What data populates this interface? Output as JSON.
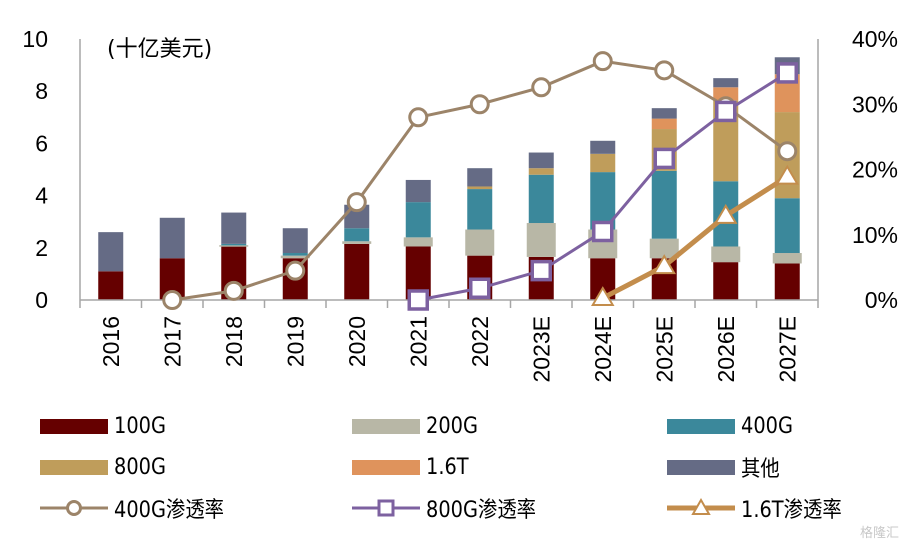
{
  "chart_data": {
    "type": "bar",
    "subtype": "stacked-bar-with-lines",
    "unit_label": "(十亿美元)",
    "categories": [
      "2016",
      "2017",
      "2018",
      "2019",
      "2020",
      "2021",
      "2022",
      "2023E",
      "2024E",
      "2025E",
      "2026E",
      "2027E"
    ],
    "left_axis": {
      "min": 0,
      "max": 10,
      "ticks": [
        "0",
        "2",
        "4",
        "6",
        "8",
        "10"
      ]
    },
    "right_axis": {
      "min": 0,
      "max": 40,
      "ticks": [
        "0%",
        "10%",
        "20%",
        "30%",
        "40%"
      ]
    },
    "series": [
      {
        "name": "100G",
        "color": "#650000",
        "values": [
          1.1,
          1.6,
          2.05,
          1.6,
          2.15,
          2.05,
          1.7,
          1.65,
          1.6,
          1.6,
          1.45,
          1.4
        ]
      },
      {
        "name": "200G",
        "color": "#b8b7a6",
        "values": [
          0,
          0,
          0.05,
          0.1,
          0.1,
          0.35,
          1.0,
          1.3,
          1.1,
          0.75,
          0.6,
          0.4
        ]
      },
      {
        "name": "400G",
        "color": "#3b889b",
        "values": [
          0,
          0,
          0.05,
          0.1,
          0.5,
          1.35,
          1.55,
          1.85,
          2.2,
          2.6,
          2.5,
          2.1
        ]
      },
      {
        "name": "800G",
        "color": "#bf9d5b",
        "values": [
          0,
          0,
          0,
          0,
          0,
          0,
          0.1,
          0.25,
          0.7,
          1.6,
          3.1,
          3.3
        ]
      },
      {
        "name": "1.6T",
        "color": "#df935c",
        "values": [
          0,
          0,
          0,
          0,
          0,
          0,
          0,
          0,
          0,
          0.4,
          0.5,
          1.45
        ]
      },
      {
        "name": "其他",
        "color": "#656b85",
        "values": [
          1.5,
          1.55,
          1.2,
          0.95,
          0.9,
          0.85,
          0.7,
          0.6,
          0.5,
          0.4,
          0.35,
          0.65
        ]
      }
    ],
    "lines": [
      {
        "name": "400G渗透率",
        "color": "#9c8469",
        "marker": "circle",
        "axis": "right",
        "values": [
          null,
          0,
          1.4,
          4.5,
          15,
          28,
          30,
          32.6,
          36.6,
          35.2,
          29.7,
          22.8
        ]
      },
      {
        "name": "800G渗透率",
        "color": "#7d61a0",
        "marker": "square",
        "axis": "right",
        "values": [
          null,
          null,
          null,
          null,
          null,
          0,
          1.8,
          4.5,
          10.5,
          21.7,
          28.9,
          34.8
        ]
      },
      {
        "name": "1.6T渗透率",
        "color": "#c38d4c",
        "marker": "triangle",
        "axis": "right",
        "values": [
          null,
          null,
          null,
          null,
          null,
          null,
          null,
          null,
          0.3,
          5.2,
          12.9,
          18.9
        ]
      }
    ],
    "legend_position": "bottom",
    "grid": false
  },
  "watermark": "格隆汇"
}
